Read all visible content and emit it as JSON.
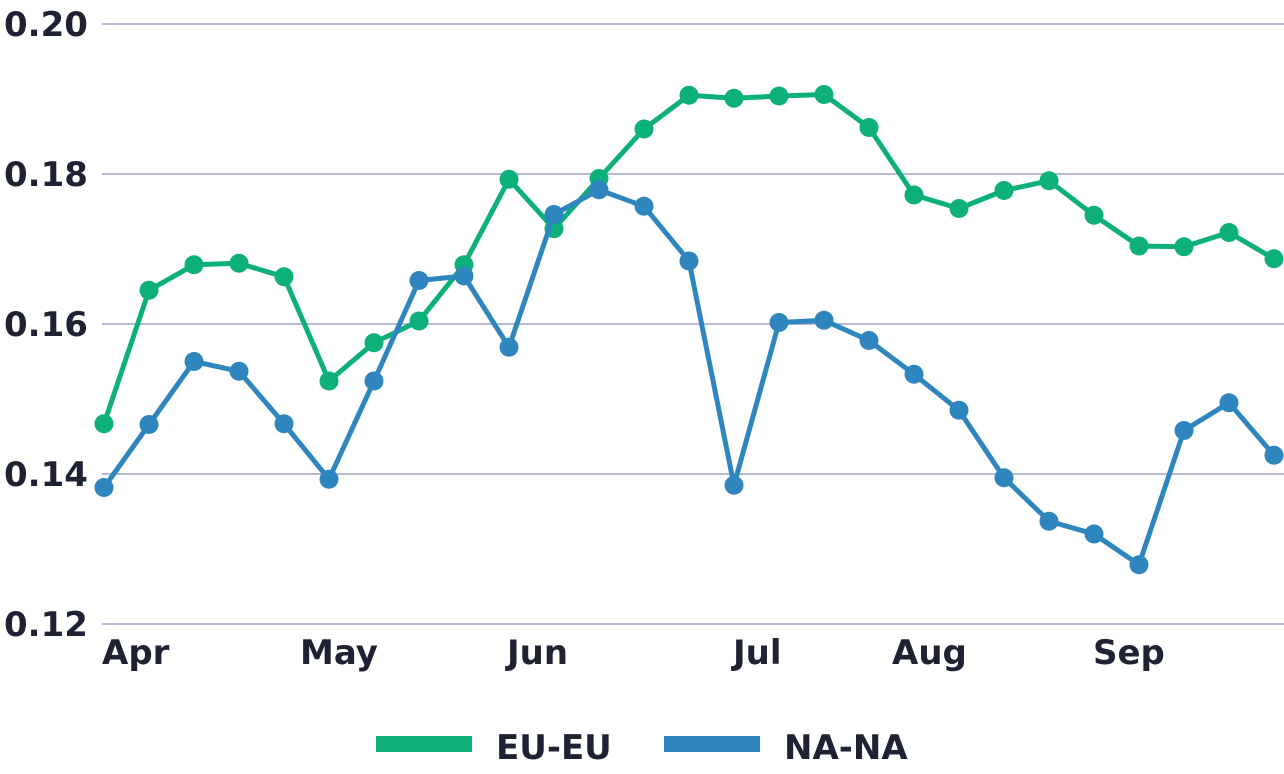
{
  "chart_data": {
    "type": "line",
    "title": "",
    "xlabel": "",
    "ylabel": "",
    "ylim": [
      0.12,
      0.2
    ],
    "yticks": [
      "0.12",
      "0.14",
      "0.16",
      "0.18",
      "0.20"
    ],
    "x_labels": [
      "Apr",
      "May",
      "Jun",
      "Jul",
      "Aug",
      "Sep"
    ],
    "grid": "horizontal",
    "legend_position": "bottom",
    "series": [
      {
        "name": "EU-EU",
        "color": "#0db07a",
        "values": [
          0.1467,
          0.1645,
          0.1679,
          0.1681,
          0.1663,
          0.1524,
          0.1575,
          0.1604,
          0.1679,
          0.1793,
          0.1727,
          0.1794,
          0.186,
          0.1905,
          0.1901,
          0.1904,
          0.1906,
          0.1862,
          0.1772,
          0.1754,
          0.1778,
          0.1791,
          0.1745,
          0.1704,
          0.1703,
          0.1722,
          0.1687
        ]
      },
      {
        "name": "NA-NA",
        "color": "#2f86bf",
        "values": [
          0.1382,
          0.1466,
          0.155,
          0.1537,
          0.1467,
          0.1393,
          0.1524,
          0.1658,
          0.1664,
          0.1569,
          0.1746,
          0.1779,
          0.1757,
          0.1684,
          0.1385,
          0.1602,
          0.1605,
          0.1578,
          0.1533,
          0.1485,
          0.1395,
          0.1337,
          0.132,
          0.1279,
          0.1458,
          0.1495,
          0.1425
        ]
      }
    ]
  }
}
